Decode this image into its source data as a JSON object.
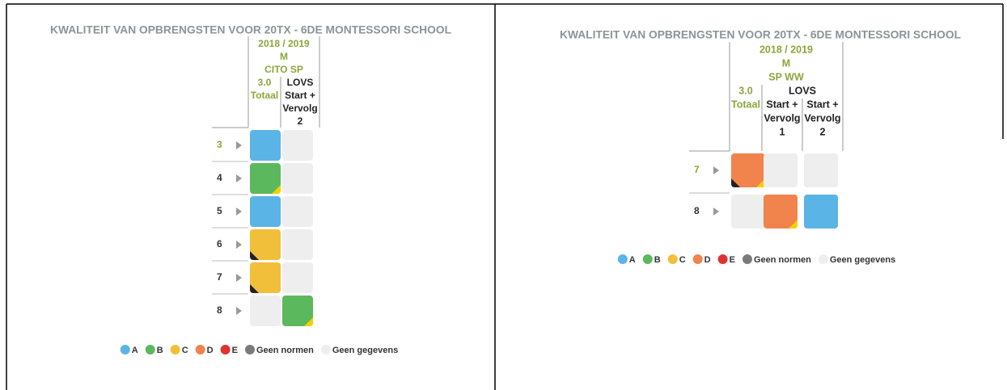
{
  "legend": [
    {
      "name": "A",
      "color": "#5ab4e5"
    },
    {
      "name": "B",
      "color": "#5cb85c"
    },
    {
      "name": "C",
      "color": "#f2bf3a"
    },
    {
      "name": "D",
      "color": "#f0844c"
    },
    {
      "name": "E",
      "color": "#e0332f"
    },
    {
      "name": "Geen normen",
      "color": "#7a7a7a"
    },
    {
      "name": "Geen gegevens",
      "color": "#eeeeee"
    }
  ],
  "panels": [
    {
      "title": "KWALITEIT VAN OPBRENGSTEN VOOR 20TX - 6DE MONTESSORI SCHOOL",
      "header": [
        "2018 / 2019",
        "M",
        "CITO SP"
      ],
      "groups": [
        {
          "label": "3.0",
          "columns": [
            [
              "Totaal"
            ]
          ]
        },
        {
          "label": "LOVS",
          "columns": [
            [
              "Start +",
              "Vervolg",
              "2"
            ]
          ]
        }
      ],
      "rows": [
        {
          "label": "3",
          "highlight": true,
          "cells": [
            {
              "grade": "A"
            },
            null
          ]
        },
        {
          "label": "4",
          "cells": [
            {
              "grade": "B",
              "corner_marks": {
                "bottom_right": "#f5d000"
              }
            },
            null
          ]
        },
        {
          "label": "5",
          "cells": [
            {
              "grade": "A"
            },
            null
          ]
        },
        {
          "label": "6",
          "cells": [
            {
              "grade": "C",
              "corner_marks": {
                "bottom_left": "#222222"
              }
            },
            null
          ]
        },
        {
          "label": "7",
          "cells": [
            {
              "grade": "C",
              "corner_marks": {
                "bottom_left": "#222222"
              }
            },
            null
          ]
        },
        {
          "label": "8",
          "cells": [
            null,
            {
              "grade": "B",
              "corner_marks": {
                "bottom_right": "#f5d000"
              }
            }
          ]
        }
      ]
    },
    {
      "title": "KWALITEIT VAN OPBRENGSTEN VOOR 20TX - 6DE MONTESSORI SCHOOL",
      "header": [
        "2018 / 2019",
        "M",
        "SP WW"
      ],
      "groups": [
        {
          "label": "3.0",
          "columns": [
            [
              "Totaal"
            ]
          ]
        },
        {
          "label": "LOVS",
          "columns": [
            [
              "Start +",
              "Vervolg",
              "1"
            ],
            [
              "Start +",
              "Vervolg",
              "2"
            ]
          ]
        }
      ],
      "rows": [
        {
          "label": "7",
          "highlight": true,
          "cells": [
            {
              "grade": "D",
              "corner_marks": {
                "bottom_left": "#222222",
                "bottom_right": "#f5d000"
              }
            },
            null,
            null
          ]
        },
        {
          "label": "8",
          "cells": [
            null,
            {
              "grade": "D",
              "corner_marks": {
                "bottom_right": "#f5d000"
              }
            },
            {
              "grade": "A"
            }
          ]
        }
      ]
    }
  ]
}
